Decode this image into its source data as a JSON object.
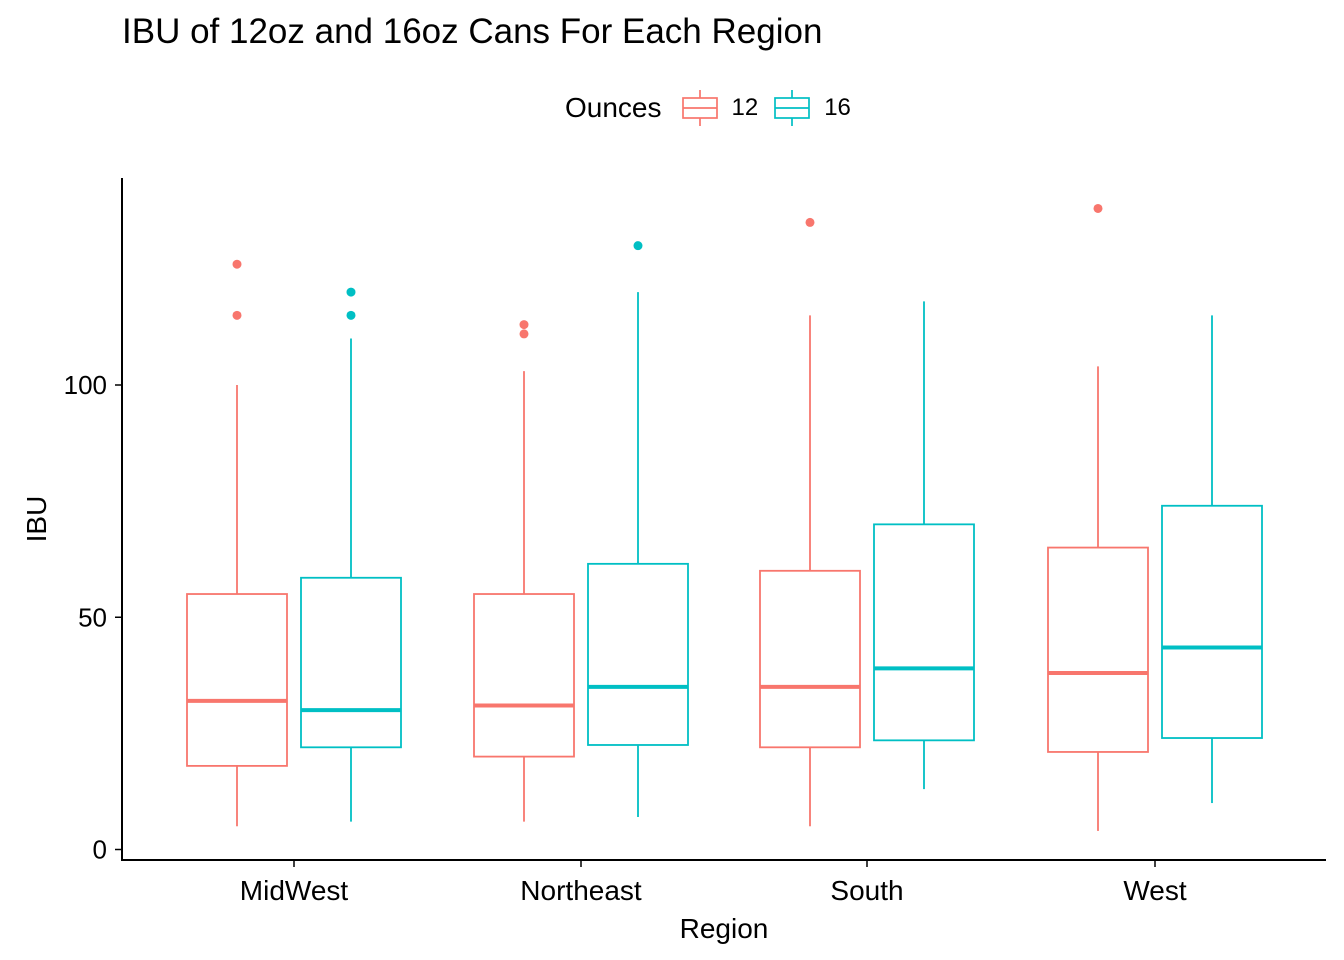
{
  "chart_data": {
    "type": "boxplot",
    "title": "IBU of 12oz and 16oz Cans For Each Region",
    "xlabel": "Region",
    "ylabel": "IBU",
    "ylim": [
      -2,
      144.5
    ],
    "yticks": [
      0,
      50,
      100
    ],
    "categories": [
      "MidWest",
      "Northeast",
      "South",
      "West"
    ],
    "legend": {
      "title": "Ounces",
      "position": "top"
    },
    "grid": false,
    "series": [
      {
        "name": "12",
        "color": "#F8766D",
        "boxes": [
          {
            "lower_whisker": 5,
            "q1": 18,
            "median": 32,
            "q3": 55,
            "upper_whisker": 100,
            "outliers": [
              115,
              126
            ]
          },
          {
            "lower_whisker": 6,
            "q1": 20,
            "median": 31,
            "q3": 55,
            "upper_whisker": 103,
            "outliers": [
              111,
              113
            ]
          },
          {
            "lower_whisker": 5,
            "q1": 22,
            "median": 35,
            "q3": 60,
            "upper_whisker": 115,
            "outliers": [
              135
            ]
          },
          {
            "lower_whisker": 4,
            "q1": 21,
            "median": 38,
            "q3": 65,
            "upper_whisker": 104,
            "outliers": [
              138
            ]
          }
        ]
      },
      {
        "name": "16",
        "color": "#00BFC4",
        "boxes": [
          {
            "lower_whisker": 6,
            "q1": 22,
            "median": 30,
            "q3": 58.5,
            "upper_whisker": 110,
            "outliers": [
              115,
              120
            ]
          },
          {
            "lower_whisker": 7,
            "q1": 22.5,
            "median": 35,
            "q3": 61.5,
            "upper_whisker": 120,
            "outliers": [
              130
            ]
          },
          {
            "lower_whisker": 13,
            "q1": 23.5,
            "median": 39,
            "q3": 70,
            "upper_whisker": 118,
            "outliers": []
          },
          {
            "lower_whisker": 10,
            "q1": 24,
            "median": 43.5,
            "q3": 74,
            "upper_whisker": 115,
            "outliers": []
          }
        ]
      }
    ]
  }
}
